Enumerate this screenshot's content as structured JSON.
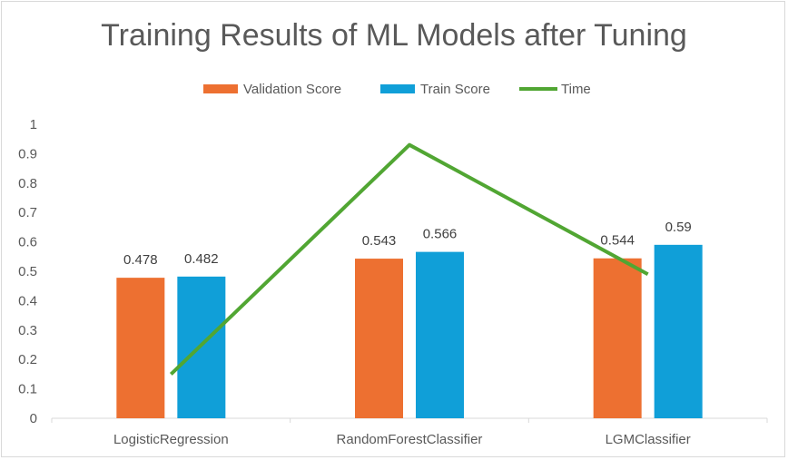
{
  "chart_data": {
    "type": "bar",
    "title": "Training Results of ML Models after Tuning",
    "categories": [
      "LogisticRegression",
      "RandomForestClassifier",
      "LGMClassifier"
    ],
    "series": [
      {
        "name": "Validation Score",
        "type": "bar",
        "color": "#ed7031",
        "values": [
          0.478,
          0.543,
          0.544
        ],
        "labels": [
          "0.478",
          "0.543",
          "0.544"
        ]
      },
      {
        "name": "Train Score",
        "type": "bar",
        "color": "#109fd8",
        "values": [
          0.482,
          0.566,
          0.59
        ],
        "labels": [
          "0.482",
          "0.566",
          "0.59"
        ]
      },
      {
        "name": "Time",
        "type": "line",
        "color": "#51a633",
        "values": [
          0.15,
          0.93,
          0.49
        ]
      }
    ],
    "ylim": [
      0,
      1
    ],
    "yticks": [
      "0",
      "0.1",
      "0.2",
      "0.3",
      "0.4",
      "0.5",
      "0.6",
      "0.7",
      "0.8",
      "0.9",
      "1"
    ],
    "xlabel": "",
    "ylabel": "",
    "legend_position": "top",
    "grid": false
  }
}
